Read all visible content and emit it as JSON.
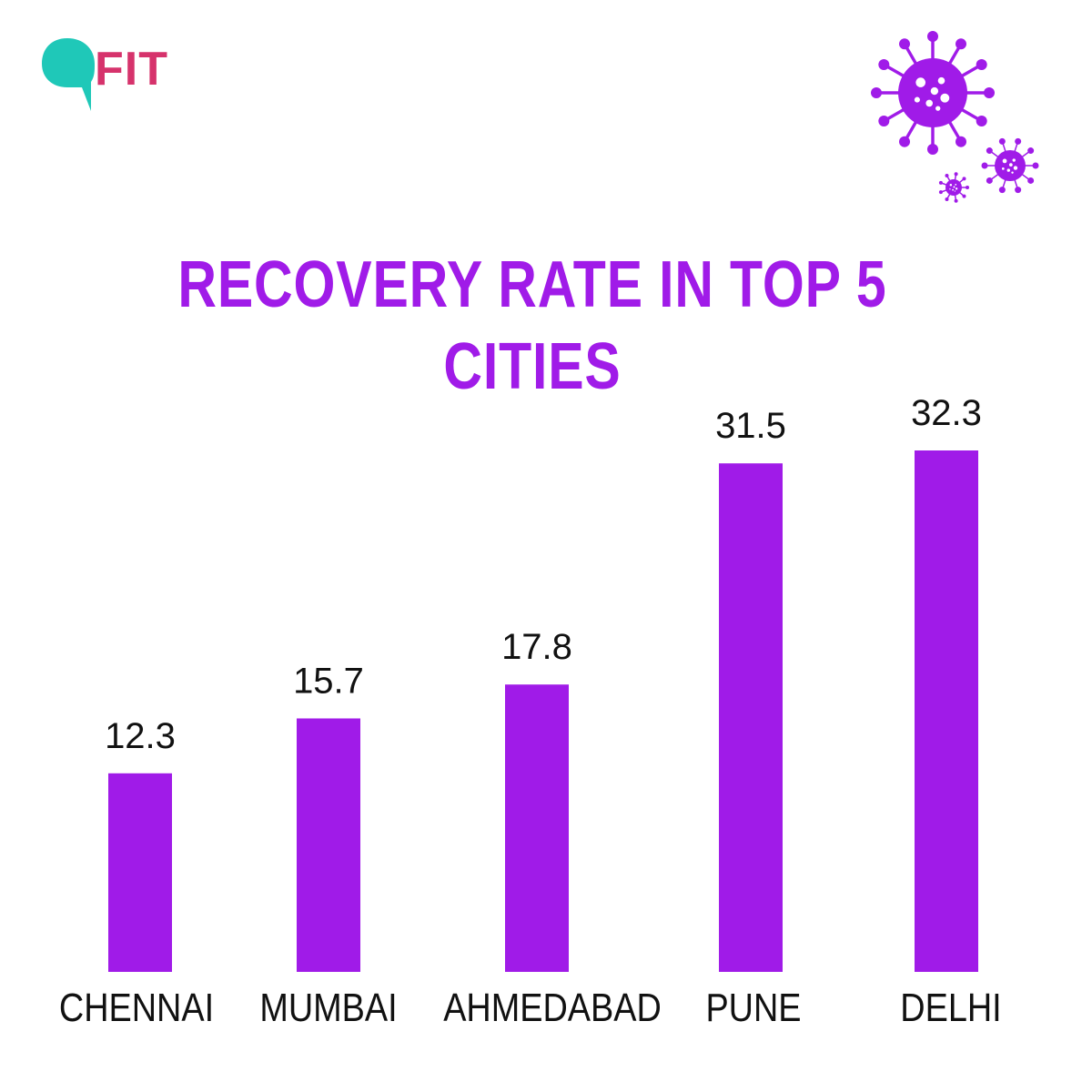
{
  "brand": {
    "logo_text": "FIT",
    "logo_color": "#d6336c",
    "bubble_color": "#1fc8b8",
    "logo_icon": "speech-bubble-icon"
  },
  "decoration": {
    "icon": "virus-icon",
    "color": "#a01be8"
  },
  "chart_data": {
    "type": "bar",
    "title": "RECOVERY RATE IN TOP 5 CITIES",
    "categories": [
      "CHENNAI",
      "MUMBAI",
      "AHMEDABAD",
      "PUNE",
      "DELHI"
    ],
    "values": [
      12.3,
      15.7,
      17.8,
      31.5,
      32.3
    ],
    "value_labels": [
      "12.3",
      "15.7",
      "17.8",
      "31.5",
      "32.3"
    ],
    "xlabel": "",
    "ylabel": "",
    "ylim": [
      0,
      32.3
    ],
    "grid": false,
    "legend": "none",
    "bar_color": "#a01be8"
  }
}
